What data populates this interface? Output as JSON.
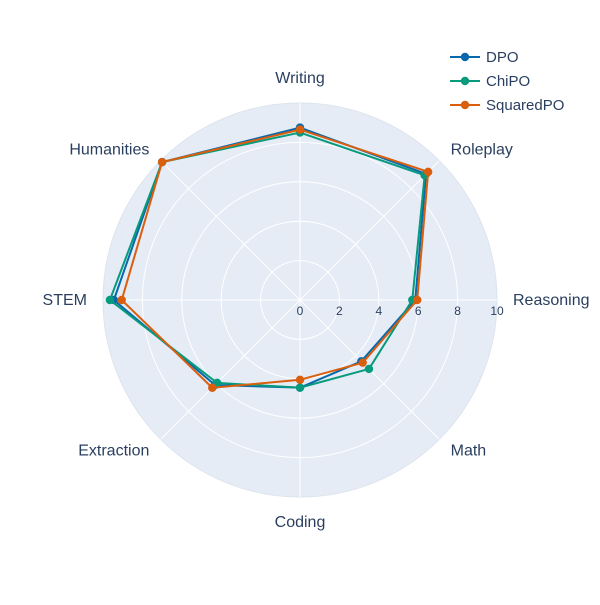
{
  "chart_data": {
    "type": "radar",
    "axes": [
      "Writing",
      "Roleplay",
      "Reasoning",
      "Math",
      "Coding",
      "Extraction",
      "STEM",
      "Humanities"
    ],
    "radial_ticks": [
      "0",
      "2",
      "4",
      "6",
      "8",
      "10"
    ],
    "radial_range": [
      0,
      10
    ],
    "legend_position": "top-right",
    "grid": true,
    "series": [
      {
        "name": "DPO",
        "color": "#0868ac",
        "values": [
          8.75,
          9.05,
          5.85,
          4.4,
          4.45,
          6.1,
          9.45,
          9.9
        ]
      },
      {
        "name": "ChiPO",
        "color": "#079a7d",
        "values": [
          8.5,
          8.95,
          5.7,
          4.95,
          4.45,
          5.95,
          9.65,
          9.9
        ]
      },
      {
        "name": "SquaredPO",
        "color": "#d95f0e",
        "values": [
          8.65,
          9.2,
          5.95,
          4.5,
          4.05,
          6.3,
          9.05,
          9.9
        ]
      }
    ]
  }
}
